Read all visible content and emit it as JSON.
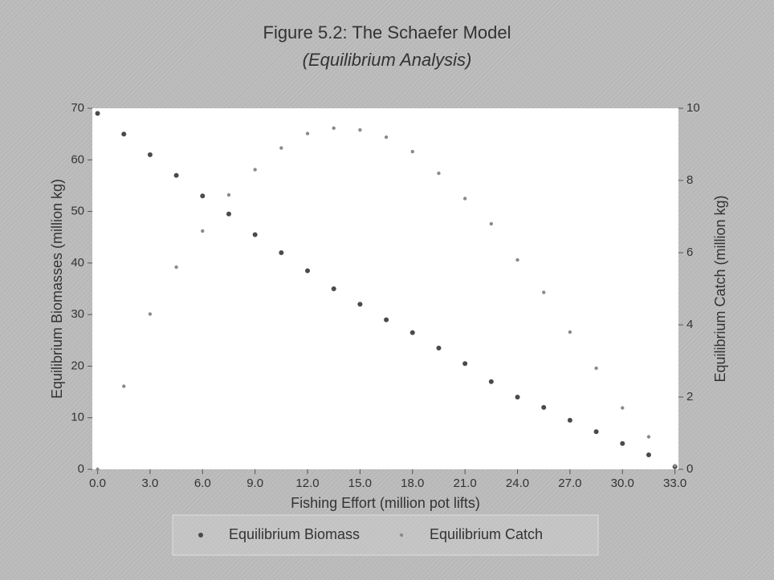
{
  "chart_data": {
    "type": "scatter",
    "title": "Figure 5.2: The Schaefer Model",
    "subtitle": "(Equilibrium Analysis)",
    "x_label": "Fishing Effort (million pot lifts)",
    "y_label": "Equilibrium Biomasses (million kg)",
    "y2_label": "Equilibrium Catch (million kg)",
    "x": [
      0,
      1.5,
      3,
      4.5,
      6,
      7.5,
      9,
      10.5,
      12,
      13.5,
      15,
      16.5,
      18,
      19.5,
      21,
      22.5,
      24,
      25.5,
      27,
      28.5,
      30,
      31.5,
      33
    ],
    "series": [
      {
        "name": "Equilibrium Biomass",
        "color": "#4a4a4a",
        "values": [
          69,
          65,
          61,
          57,
          53,
          49.5,
          45.5,
          42,
          38.5,
          35,
          32,
          29,
          26.5,
          23.5,
          20.5,
          17,
          14,
          12,
          9.5,
          7.3,
          5,
          2.8,
          0.5
        ]
      },
      {
        "name": "Equilibrium Catch",
        "color": "#8a8a8a",
        "axis": "y2",
        "values": [
          0,
          2.3,
          4.3,
          5.6,
          6.6,
          7.6,
          8.3,
          8.9,
          9.3,
          9.45,
          9.4,
          9.2,
          8.8,
          8.2,
          7.5,
          6.8,
          5.8,
          4.9,
          3.8,
          2.8,
          1.7,
          0.9,
          0.1
        ]
      }
    ],
    "xlim": [
      -0.3,
      33.2
    ],
    "xticks": [
      {
        "value": 0,
        "label": "0.0"
      },
      {
        "value": 3,
        "label": "3.0"
      },
      {
        "value": 6,
        "label": "6.0"
      },
      {
        "value": 9,
        "label": "9.0"
      },
      {
        "value": 12,
        "label": "12.0"
      },
      {
        "value": 15,
        "label": "15.0"
      },
      {
        "value": 18,
        "label": "18.0"
      },
      {
        "value": 21,
        "label": "21.0"
      },
      {
        "value": 24,
        "label": "24.0"
      },
      {
        "value": 27,
        "label": "27.0"
      },
      {
        "value": 30,
        "label": "30.0"
      },
      {
        "value": 33,
        "label": "33.0"
      }
    ],
    "ylim": [
      0,
      70
    ],
    "yticks": [
      0,
      10,
      20,
      30,
      40,
      50,
      60,
      70
    ],
    "y2lim": [
      0,
      10
    ],
    "y2ticks": [
      0,
      2,
      4,
      6,
      8,
      10
    ],
    "legend": "bottom"
  }
}
